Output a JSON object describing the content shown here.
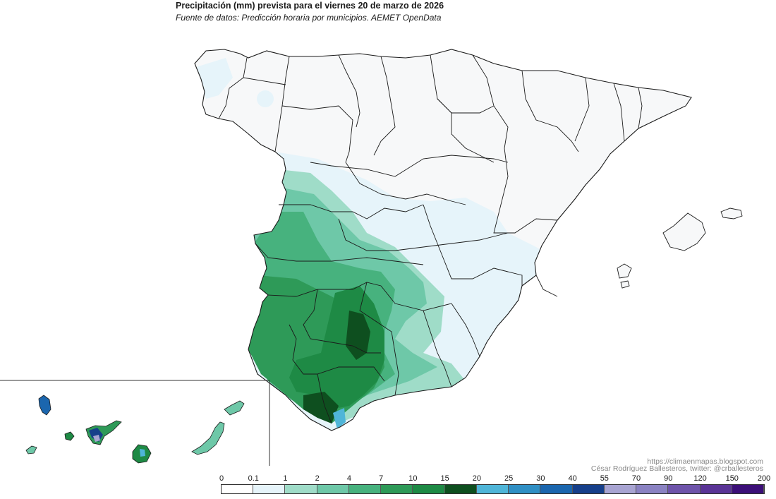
{
  "header": {
    "title": "Precipitación (mm) prevista para el viernes 20 de marzo de 2026",
    "subtitle": "Fuente de datos: Predicción horaria por municipios. AEMET OpenData"
  },
  "credits": {
    "url": "https://climaenmapas.blogspot.com",
    "author": "César Rodríguez Ballesteros, twitter: @crballesteros"
  },
  "legend": {
    "unit": "mm",
    "breaks": [
      "0",
      "0.1",
      "1",
      "2",
      "4",
      "7",
      "10",
      "15",
      "20",
      "25",
      "30",
      "40",
      "55",
      "70",
      "90",
      "120",
      "150",
      "200"
    ],
    "colors": [
      "#ffffff",
      "#e6f4fa",
      "#9fdcc8",
      "#6ec8a8",
      "#47b27e",
      "#2e9a58",
      "#1e8a45",
      "#0e4f1f",
      "#4fb5d8",
      "#2f8fc4",
      "#1b66ae",
      "#163f8a",
      "#a8a4d2",
      "#8a82c2",
      "#6e54aa",
      "#5a3496",
      "#3c0f78"
    ]
  },
  "map": {
    "region": "España peninsular, Baleares y Canarias",
    "background_color": "#f7f8f9",
    "border_color": "#1a1a1a"
  }
}
